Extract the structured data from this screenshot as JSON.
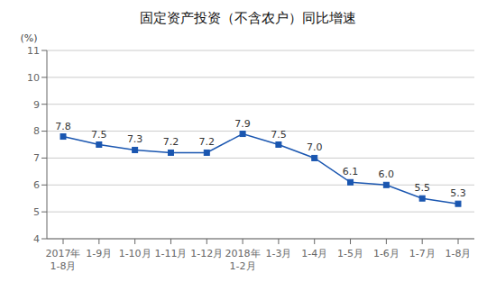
{
  "chart_data": {
    "type": "line",
    "title": "固定资产投资（不含农户）同比增速",
    "ylabel": "(%)",
    "categories": [
      "2017年\n1-8月",
      "1-9月",
      "1-10月",
      "1-11月",
      "1-12月",
      "2018年\n1-2月",
      "1-3月",
      "1-4月",
      "1-5月",
      "1-6月",
      "1-7月",
      "1-8月"
    ],
    "values": [
      7.8,
      7.5,
      7.3,
      7.2,
      7.2,
      7.9,
      7.5,
      7.0,
      6.1,
      6.0,
      5.5,
      5.3
    ],
    "value_labels": [
      "7.8",
      "7.5",
      "7.3",
      "7.2",
      "7.2",
      "7.9",
      "7.5",
      "7.0",
      "6.1",
      "6.0",
      "5.5",
      "5.3"
    ],
    "ylim": [
      4,
      11
    ],
    "yticks": [
      4,
      5,
      6,
      7,
      8,
      9,
      10,
      11
    ],
    "color": "#1A56B0",
    "marker": "square",
    "grid": true,
    "data_labels": true
  }
}
